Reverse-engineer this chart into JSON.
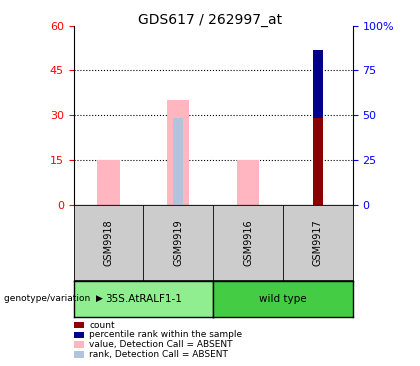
{
  "title": "GDS617 / 262997_at",
  "samples": [
    "GSM9918",
    "GSM9919",
    "GSM9916",
    "GSM9917"
  ],
  "groups": [
    {
      "label": "35S.AtRALF1-1",
      "color": "#90ee90",
      "indices": [
        0,
        1
      ]
    },
    {
      "label": "wild type",
      "color": "#44cc44",
      "indices": [
        2,
        3
      ]
    }
  ],
  "value_bars": [
    15,
    35,
    15,
    0
  ],
  "rank_bars": [
    0,
    29,
    0,
    0
  ],
  "count_bars": [
    0,
    0,
    0,
    29
  ],
  "percentile_bars": [
    0,
    0,
    0,
    23
  ],
  "left_ylim": [
    0,
    60
  ],
  "right_ylim": [
    0,
    100
  ],
  "left_yticks": [
    0,
    15,
    30,
    45,
    60
  ],
  "right_yticks": [
    0,
    25,
    50,
    75,
    100
  ],
  "right_yticklabels": [
    "0",
    "25",
    "50",
    "75",
    "100%"
  ],
  "dotted_lines": [
    15,
    30,
    45
  ],
  "value_color": "#ffb6c1",
  "rank_color": "#b0c4de",
  "count_color": "#8b0000",
  "percentile_color": "#00008b",
  "legend_items": [
    {
      "color": "#8b0000",
      "label": "count"
    },
    {
      "color": "#00008b",
      "label": "percentile rank within the sample"
    },
    {
      "color": "#ffb6c1",
      "label": "value, Detection Call = ABSENT"
    },
    {
      "color": "#b0c4de",
      "label": "rank, Detection Call = ABSENT"
    }
  ]
}
